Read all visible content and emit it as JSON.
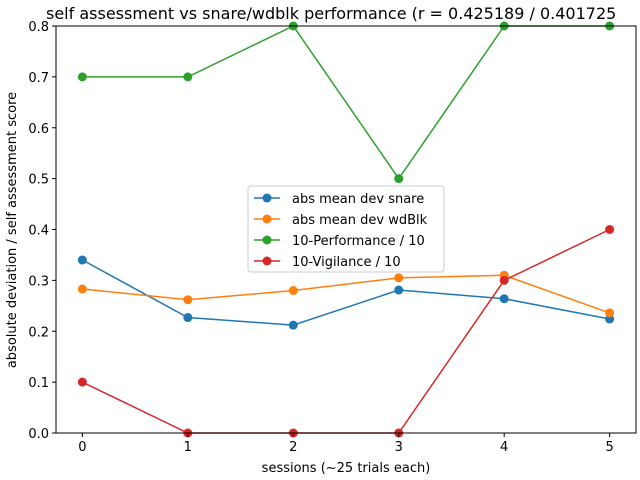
{
  "chart_data": {
    "type": "line",
    "title": "self assessment vs snare/wdblk performance (r = 0.425189 / 0.401725",
    "xlabel": "sessions (~25 trials each)",
    "ylabel": "absolute deviation / self assessment score",
    "x": [
      0,
      1,
      2,
      3,
      4,
      5
    ],
    "xlim": [
      -0.25,
      5.25
    ],
    "ylim": [
      0.0,
      0.8
    ],
    "xticks": [
      "0",
      "1",
      "2",
      "3",
      "4",
      "5"
    ],
    "yticks": [
      "0.0",
      "0.1",
      "0.2",
      "0.3",
      "0.4",
      "0.5",
      "0.6",
      "0.7",
      "0.8"
    ],
    "grid": false,
    "legend_position": "center",
    "series": [
      {
        "name": "abs mean dev snare",
        "color": "#1f77b4",
        "values": [
          0.34,
          0.227,
          0.212,
          0.281,
          0.264,
          0.224
        ]
      },
      {
        "name": "abs mean dev wdBlk",
        "color": "#ff7f0e",
        "values": [
          0.283,
          0.262,
          0.28,
          0.305,
          0.31,
          0.236
        ]
      },
      {
        "name": "10-Performance / 10",
        "color": "#2ca02c",
        "values": [
          0.7,
          0.7,
          0.8,
          0.5,
          0.8,
          0.8
        ]
      },
      {
        "name": "10-Vigilance / 10",
        "color": "#d62728",
        "values": [
          0.1,
          0.0,
          0.0,
          0.0,
          0.3,
          0.4
        ]
      }
    ]
  }
}
